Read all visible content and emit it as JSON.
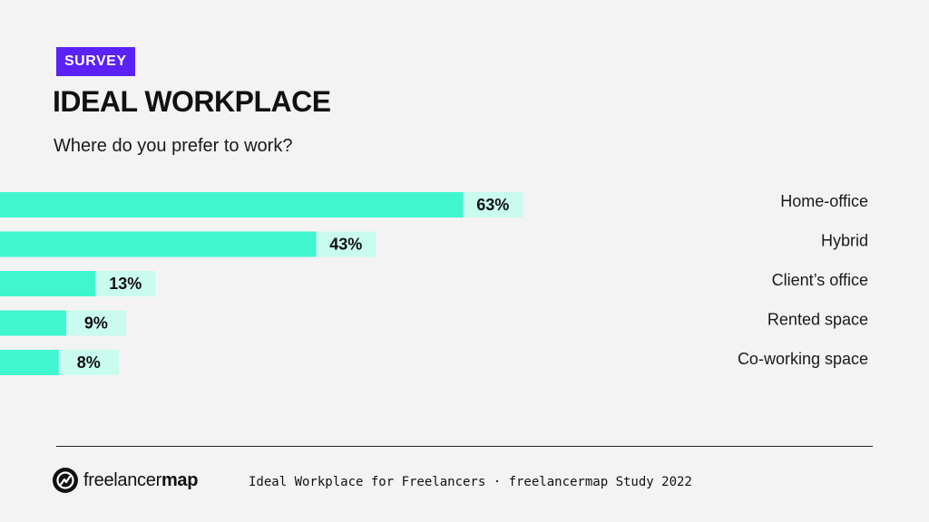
{
  "header": {
    "badge": "SURVEY",
    "title": "IDEAL WORKPLACE",
    "subtitle": "Where do you prefer to work?"
  },
  "colors": {
    "badge": "#5b21f5",
    "bar": "#3ff6cf",
    "bar_track": "#c9fbee"
  },
  "chart_data": {
    "type": "bar",
    "orientation": "horizontal",
    "title": "IDEAL WORKPLACE",
    "subtitle": "Where do you prefer to work?",
    "categories": [
      "Home-office",
      "Hybrid",
      "Client’s office",
      "Rented space",
      "Co-working space"
    ],
    "values": [
      63,
      43,
      13,
      9,
      8
    ],
    "value_labels": [
      "63%",
      "43%",
      "13%",
      "9%",
      "8%"
    ],
    "unit": "%",
    "xlim": [
      0,
      100
    ],
    "grid": false,
    "legend": "none"
  },
  "footer": {
    "logo_name_regular": "freelancer",
    "logo_name_bold": "map",
    "caption": "Ideal Workplace for Freelancers · freelancermap Study 2022"
  }
}
